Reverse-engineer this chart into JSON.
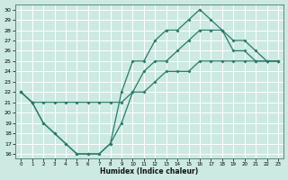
{
  "xlabel": "Humidex (Indice chaleur)",
  "bg_color": "#cce9e2",
  "grid_color": "#ffffff",
  "line_color": "#2a7a6a",
  "xlim_min": -0.5,
  "xlim_max": 23.5,
  "ylim_min": 15.6,
  "ylim_max": 30.5,
  "xticks": [
    0,
    1,
    2,
    3,
    4,
    5,
    6,
    7,
    8,
    9,
    10,
    11,
    12,
    13,
    14,
    15,
    16,
    17,
    18,
    19,
    20,
    21,
    22,
    23
  ],
  "yticks": [
    16,
    17,
    18,
    19,
    20,
    21,
    22,
    23,
    24,
    25,
    26,
    27,
    28,
    29,
    30
  ],
  "line1_x": [
    0,
    1,
    2,
    3,
    4,
    5,
    6,
    7,
    8,
    9,
    10,
    11,
    12,
    13,
    14,
    15,
    16,
    17,
    18,
    19,
    20,
    21,
    22,
    23
  ],
  "line1_y": [
    22,
    21,
    19,
    18,
    17,
    16,
    16,
    16,
    17,
    19,
    22,
    24,
    25,
    25,
    26,
    27,
    28,
    28,
    28,
    26,
    26,
    25,
    25,
    25
  ],
  "line2_x": [
    0,
    1,
    2,
    3,
    4,
    5,
    6,
    7,
    8,
    9,
    10,
    11,
    12,
    13,
    14,
    15,
    16,
    17,
    18,
    19,
    20,
    21,
    22,
    23
  ],
  "line2_y": [
    22,
    21,
    21,
    21,
    21,
    21,
    21,
    21,
    21,
    21,
    22,
    22,
    23,
    24,
    24,
    24,
    25,
    25,
    25,
    25,
    25,
    25,
    25,
    25
  ],
  "line3_x": [
    0,
    1,
    2,
    3,
    4,
    5,
    6,
    7,
    8,
    9,
    10,
    11,
    12,
    13,
    14,
    15,
    16,
    17,
    18,
    19,
    20,
    21,
    22,
    23
  ],
  "line3_y": [
    22,
    21,
    19,
    18,
    17,
    16,
    16,
    16,
    17,
    22,
    25,
    25,
    27,
    28,
    28,
    29,
    30,
    29,
    28,
    27,
    27,
    26,
    25,
    25
  ]
}
